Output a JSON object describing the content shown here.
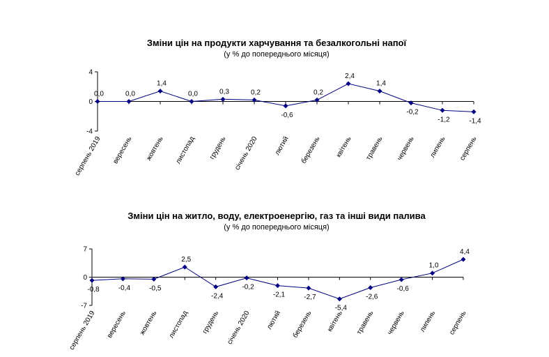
{
  "chart_data": [
    {
      "type": "line",
      "title": "Зміни цін на продукти харчування та безалкогольні напої",
      "subtitle": "(у % до попереднього місяця)",
      "categories": [
        "серпень 2019",
        "вересень",
        "жовтень",
        "листопад",
        "грудень",
        "січень 2020",
        "лютий",
        "березень",
        "квітень",
        "травень",
        "червень",
        "липень",
        "серпень"
      ],
      "values": [
        0.0,
        0.0,
        1.4,
        0.0,
        0.3,
        0.2,
        -0.6,
        0.2,
        2.4,
        1.4,
        -0.2,
        -1.2,
        -1.4
      ],
      "labels": [
        "0,0",
        "0,0",
        "1,4",
        "0,0",
        "0,3",
        "0,2",
        "-0,6",
        "0,2",
        "2,4",
        "1,4",
        "-0,2",
        "-1,2",
        "-1,4"
      ],
      "ylim": [
        -4,
        4
      ],
      "yticks": [
        4,
        0,
        -4
      ],
      "ytick_labels": [
        "4",
        "0",
        "-4"
      ],
      "grid": false,
      "legend": "none",
      "series_color": "#000080"
    },
    {
      "type": "line",
      "title": "Зміни цін на житло, воду, електроенергію, газ та інші види палива",
      "subtitle": "(у % до попереднього місяця)",
      "categories": [
        "серпень 2019",
        "вересень",
        "жовтень",
        "листопад",
        "грудень",
        "січень 2020",
        "лютий",
        "березень",
        "квітень",
        "травень",
        "червень",
        "липень",
        "серпень"
      ],
      "values": [
        -0.8,
        -0.4,
        -0.5,
        2.5,
        -2.4,
        -0.2,
        -2.1,
        -2.7,
        -5.4,
        -2.6,
        -0.6,
        1.0,
        4.4
      ],
      "labels": [
        "-0,8",
        "-0,4",
        "-0,5",
        "2,5",
        "-2,4",
        "-0,2",
        "-2,1",
        "-2,7",
        "-5,4",
        "-2,6",
        "-0,6",
        "1,0",
        "4,4"
      ],
      "ylim": [
        -7,
        7
      ],
      "yticks": [
        7,
        0,
        -7
      ],
      "ytick_labels": [
        "7",
        "0",
        "-7"
      ],
      "grid": false,
      "legend": "none",
      "series_color": "#000080"
    }
  ]
}
